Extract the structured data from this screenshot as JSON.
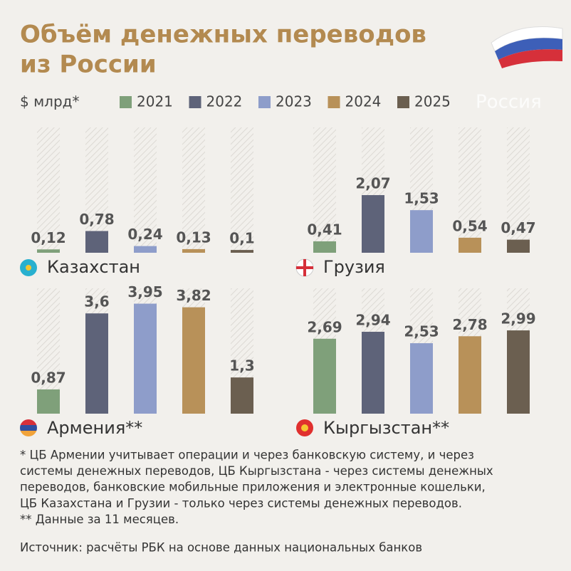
{
  "title": [
    "Объём денежных переводов",
    "из России"
  ],
  "watermark": "Россия",
  "notes": [
    "* ЦБ Армении учитывает операции и через банковскую систему, и через",
    "системы денежных переводов, ЦБ Кыргызстана - через системы денежных",
    "переводов, банковские мобильные приложения и электронные кошельки,",
    "ЦБ Казахстана и Грузии - только через системы денежных переводов.",
    "** Данные за 11 месяцев."
  ],
  "source": "Источник: расчёты РБК на основе данных национальных банков",
  "chart_data": {
    "type": "bar",
    "unit": "$ млрд*",
    "categories": [
      "Казахстан",
      "Грузия",
      "Армения**",
      "Кыргызстан**"
    ],
    "ylim": [
      0,
      4.5
    ],
    "series": [
      {
        "name": "2021",
        "color": "#7fa07a",
        "values": [
          0.12,
          0.41,
          0.87,
          2.69
        ],
        "value_labels": [
          "0,12",
          "0,41",
          "0,87",
          "2,69"
        ]
      },
      {
        "name": "2022",
        "color": "#5e6379",
        "values": [
          0.78,
          2.07,
          3.6,
          2.94
        ],
        "value_labels": [
          "0,78",
          "2,07",
          "3,6",
          "2,94"
        ]
      },
      {
        "name": "2023",
        "color": "#8e9dca",
        "values": [
          0.24,
          1.53,
          3.95,
          2.53
        ],
        "value_labels": [
          "0,24",
          "1,53",
          "3,95",
          "2,53"
        ]
      },
      {
        "name": "2024",
        "color": "#b89159",
        "values": [
          0.13,
          0.54,
          3.82,
          2.78
        ],
        "value_labels": [
          "0,13",
          "0,54",
          "3,82",
          "2,78"
        ]
      },
      {
        "name": "2025",
        "color": "#6b5f50",
        "values": [
          0.1,
          0.47,
          1.3,
          2.99
        ],
        "value_labels": [
          "0,1",
          "0,47",
          "1,3",
          "2,99"
        ]
      }
    ]
  }
}
